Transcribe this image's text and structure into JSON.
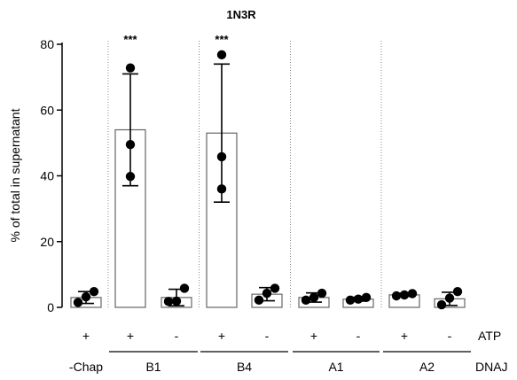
{
  "chart_data": {
    "type": "bar",
    "title": "1N3R",
    "ylabel": "% of total in supernatant",
    "ylim": [
      0,
      80
    ],
    "yticks": [
      0,
      20,
      40,
      60,
      80
    ],
    "categories": [
      "-Chap +",
      "B1 +",
      "B1 -",
      "B4 +",
      "B4 -",
      "A1 +",
      "A1 -",
      "A2 +",
      "A2 -"
    ],
    "values": [
      3,
      54,
      3,
      53,
      4,
      3,
      2.5,
      3.8,
      2.6
    ],
    "error": [
      1.8,
      17,
      2.5,
      21,
      2,
      1.4,
      0.6,
      0.5,
      2
    ],
    "points": [
      [
        1.5,
        3.2,
        4.8
      ],
      [
        39.8,
        49.5,
        72.8
      ],
      [
        1.8,
        1.9,
        5.8
      ],
      [
        36,
        45.8,
        76.8
      ],
      [
        2.2,
        4.3,
        5.8
      ],
      [
        2.2,
        3,
        4.3
      ],
      [
        2.2,
        2.5,
        3
      ],
      [
        3.5,
        3.8,
        4.2
      ],
      [
        0.8,
        2.8,
        4.8
      ]
    ],
    "significance": [
      "",
      "***",
      "",
      "***",
      "",
      "",
      "",
      "",
      ""
    ],
    "atp_row_label": "ATP",
    "atp_labels": [
      "+",
      "+",
      "-",
      "+",
      "-",
      "+",
      "-",
      "+",
      "-"
    ],
    "dnaj_row_label": "DNAJ",
    "dnaj_groups": [
      "-Chap",
      "B1",
      "B4",
      "A1",
      "A2"
    ],
    "group_spans": [
      [
        0,
        0
      ],
      [
        1,
        2
      ],
      [
        3,
        4
      ],
      [
        5,
        6
      ],
      [
        7,
        8
      ]
    ],
    "grid": false,
    "colors": {
      "bar_fill": "#ffffff",
      "bar_stroke": "#666666",
      "point": "#000000",
      "divider": "#888888"
    }
  }
}
